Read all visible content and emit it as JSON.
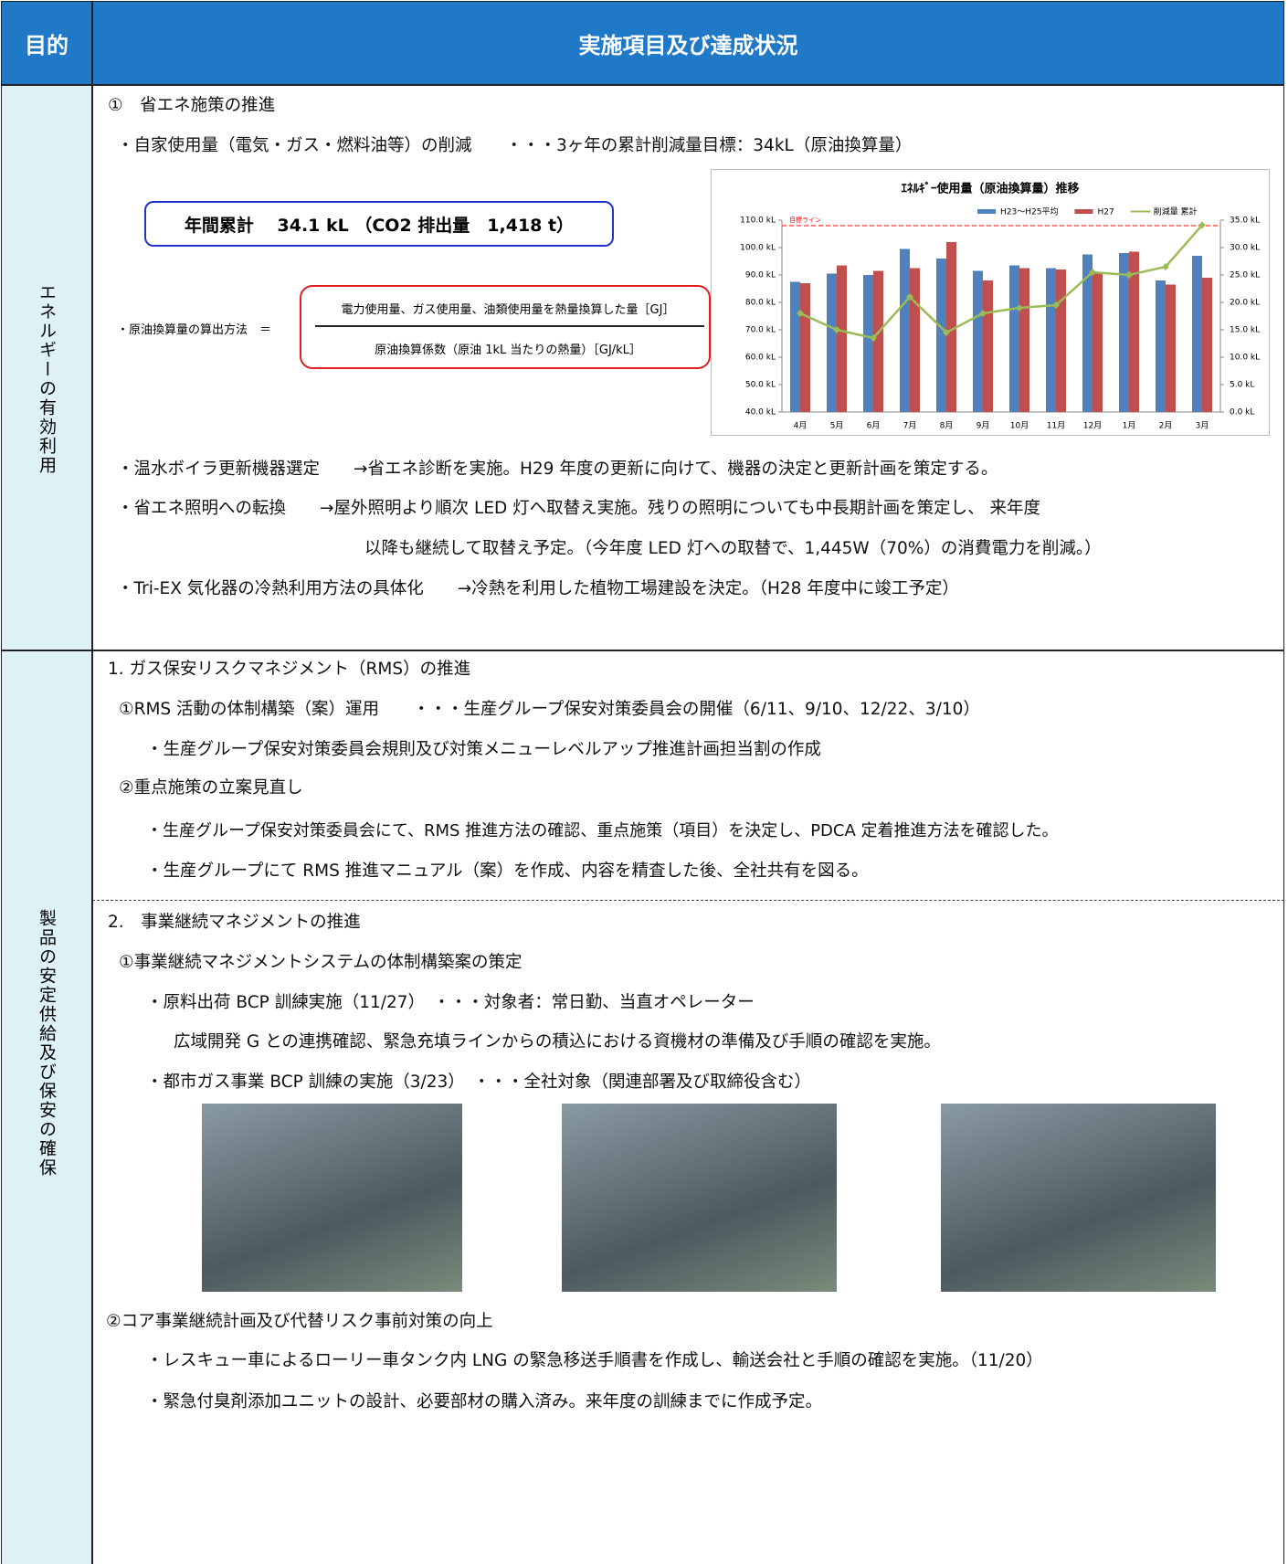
{
  "header": {
    "purpose": "目的",
    "status": "実施項目及び達成状況"
  },
  "sections": [
    {
      "purpose": "エネルギーの有効利用",
      "heading": "①　省エネ施策の推進",
      "target": "・自家使用量（電気・ガス・燃料油等）の削減　　・・・3ヶ年の累計削減量目標：34kL（原油換算量）",
      "annual_total": "年間累計　 34.1 kL （CO2 排出量　1,418 t）",
      "formula": {
        "label": "・原油換算量の算出方法　＝",
        "numerator": "電力使用量、ガス使用量、油類使用量を熱量換算した量［GJ］",
        "denominator": "原油換算係数（原油 1kL 当たりの熱量）［GJ/kL］"
      },
      "lines": [
        "・温水ボイラ更新機器選定　　→省エネ診断を実施。H29 年度の更新に向けて、機器の決定と更新計画を策定する。",
        "・省エネ照明への転換　　→屋外照明より順次 LED 灯へ取替え実施。残りの照明についても中長期計画を策定し、 来年度",
        "以降も継続して取替え予定。（今年度 LED 灯への取替で、1,445W（70%）の消費電力を削減。）",
        "・Tri-EX 気化器の冷熱利用方法の具体化　　→冷熱を利用した植物工場建設を決定。（H28 年度中に竣工予定）"
      ]
    },
    {
      "purpose": "製品の安定供給及び保安の確保",
      "lines": [
        "1. ガス保安リスクマネジメント（RMS）の推進",
        "①RMS 活動の体制構築（案）運用　　・・・生産グループ保安対策委員会の開催（6/11、9/10、12/22、3/10）",
        "・生産グループ保安対策委員会規則及び対策メニューレベルアップ推進計画担当割の作成",
        "②重点施策の立案見直し",
        "・生産グループ保安対策委員会にて、RMS 推進方法の確認、重点施策（項目）を決定し、PDCA 定着推進方法を確認した。",
        "・生産グループにて RMS 推進マニュアル（案）を作成、内容を精査した後、全社共有を図る。",
        "2.　事業継続マネジメントの推進",
        "①事業継続マネジメントシステムの体制構築案の策定",
        "・原料出荷 BCP 訓練実施（11/27）　・・・対象者：常日勤、当直オペレーター",
        "広域開発 G との連携確認、緊急充填ラインからの積込における資機材の準備及び手順の確認を実施。",
        "・都市ガス事業 BCP 訓練の実施（3/23）　・・・全社対象（関連部署及び取締役含む）",
        "②コア事業継続計画及び代替リスク事前対策の向上",
        "・レスキュー車によるローリー車タンク内 LNG の緊急移送手順書を作成し、輸送会社と手順の確認を実施。（11/20）",
        "・緊急付臭剤添加ユニットの設計、必要部材の購入済み。来年度の訓練までに作成予定。"
      ]
    }
  ],
  "chart_data": {
    "type": "bar-line",
    "title": "ｴﾈﾙｷﾞｰ使用量（原油換算量）推移",
    "categories": [
      "4月",
      "5月",
      "6月",
      "7月",
      "8月",
      "9月",
      "10月",
      "11月",
      "12月",
      "1月",
      "2月",
      "3月"
    ],
    "series": [
      {
        "name": "H23～H25平均",
        "color": "#4f81bd",
        "type": "bar",
        "values": [
          87.5,
          90.5,
          90,
          99.5,
          96,
          91.5,
          93.5,
          92.5,
          97.5,
          98,
          88,
          97
        ]
      },
      {
        "name": "H27",
        "color": "#c0504d",
        "type": "bar",
        "values": [
          87,
          93.5,
          91.5,
          92.5,
          102,
          88,
          92.5,
          92,
          91,
          98.5,
          86.5,
          89
        ]
      },
      {
        "name": "削減量 累計",
        "color": "#9bbb59",
        "type": "line",
        "axis": "y2",
        "values": [
          18,
          15,
          13.5,
          21,
          14.5,
          18,
          19,
          19.5,
          25.5,
          25,
          26.5,
          34.1
        ]
      }
    ],
    "target_line": {
      "label": "目標ライン",
      "value": 34,
      "axis": "y2",
      "color": "#ff0000"
    },
    "ylim": [
      40,
      110
    ],
    "yticks": [
      {
        "value": 40,
        "label": "40.0 kL"
      },
      {
        "value": 50,
        "label": "50.0 kL"
      },
      {
        "value": 60,
        "label": "60.0 kL"
      },
      {
        "value": 70,
        "label": "70.0 kL"
      },
      {
        "value": 80,
        "label": "80.0 kL"
      },
      {
        "value": 90,
        "label": "90.0 kL"
      },
      {
        "value": 100,
        "label": "100.0 kL"
      },
      {
        "value": 110,
        "label": "110.0 kL"
      }
    ],
    "y2lim": [
      0,
      35
    ],
    "y2ticks": [
      {
        "value": 0,
        "label": "0.0 kL"
      },
      {
        "value": 5,
        "label": "5.0 kL"
      },
      {
        "value": 10,
        "label": "10.0 kL"
      },
      {
        "value": 15,
        "label": "15.0 kL"
      },
      {
        "value": 20,
        "label": "20.0 kL"
      },
      {
        "value": 25,
        "label": "25.0 kL"
      },
      {
        "value": 30,
        "label": "30.0 kL"
      },
      {
        "value": 35,
        "label": "35.0 kL"
      }
    ],
    "grid": false
  }
}
